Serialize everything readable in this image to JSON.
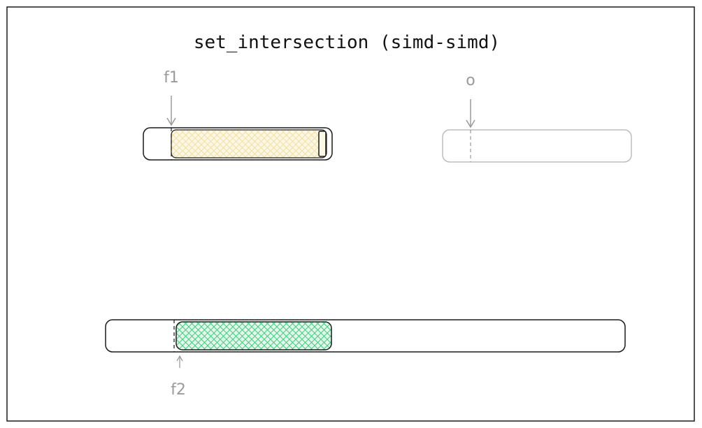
{
  "title": "set_intersection (simd-simd)",
  "labels": {
    "f1": "f1",
    "o": "o",
    "f2": "f2"
  },
  "colors": {
    "frame": "#1a1a1a",
    "ink": "#111111",
    "muted": "#9a9a9a",
    "f1_hatch": "#f3dfa0",
    "f1_fill": "#fdf8e6",
    "f2_hatch": "#3ccf7a",
    "f2_fill": "#e6f8ee",
    "output_outline": "#bdbdbd"
  }
}
